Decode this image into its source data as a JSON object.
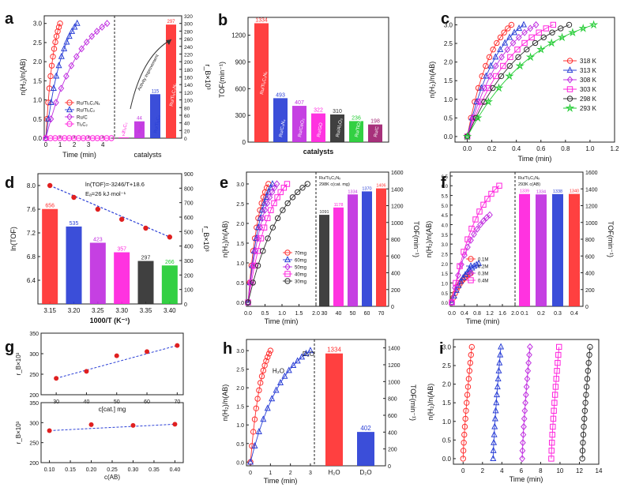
{
  "colors": {
    "red": "#ff3030",
    "blue": "#2a3fd6",
    "violet": "#c030e0",
    "magenta": "#ff22dd",
    "black": "#303030",
    "green": "#22cc33",
    "gray": "#555555"
  },
  "chart_data": [
    {
      "id": "a",
      "type": "line+bar",
      "panel_label": "a",
      "xlabel": "Time (min)",
      "ylabel": "n(H₂)/n(AB)",
      "y2label": "r_B×10³",
      "xlim": [
        0,
        4.6
      ],
      "ylim": [
        0,
        3.2
      ],
      "y2lim": [
        0,
        320
      ],
      "xticks": [
        "0",
        "1",
        "2",
        "3",
        "4"
      ],
      "yticks": [
        "0.0",
        "0.5",
        "1.0",
        "1.5",
        "2.0",
        "2.5",
        "3.0"
      ],
      "y2ticks": [
        "0",
        "20",
        "40",
        "60",
        "80",
        "100",
        "120",
        "140",
        "160",
        "180",
        "200",
        "220",
        "240",
        "260",
        "280",
        "300",
        "320"
      ],
      "legend": [
        "Ru/Ti₃C₂Nₓ",
        "Ru/Ti₃C₂",
        "Ru/C",
        "Ti₃C₂"
      ],
      "series": [
        {
          "name": "Ru/Ti₃C₂Nₓ",
          "color": "#ff3030",
          "marker": "circle",
          "tend": 1.0
        },
        {
          "name": "Ru/Ti₃C₂",
          "color": "#2a3fd6",
          "marker": "triangle",
          "tend": 2.2
        },
        {
          "name": "Ru/C",
          "color": "#c030e0",
          "marker": "diamond",
          "tend": 4.3
        },
        {
          "name": "Ti₃C₂",
          "color": "#ff22dd",
          "marker": "circle",
          "tend": 4.6,
          "flat": true
        }
      ],
      "bar_xlabel": "catalysts",
      "bar_annotation": "Activity improvement",
      "bars": [
        {
          "label": "Ti₃C₂",
          "value": 2,
          "color": "#ff22dd",
          "tag": "2"
        },
        {
          "label": "Ru/C",
          "value": 44,
          "color": "#c030e0",
          "tag": "44"
        },
        {
          "label": "Ru/Ti₃C₂",
          "value": 115,
          "color": "#2a3fd6",
          "tag": "115"
        },
        {
          "label": "Ru/Ti₃C₂Nₓ",
          "value": 297,
          "color": "#ff3030",
          "tag": "297"
        }
      ]
    },
    {
      "id": "b",
      "type": "bar",
      "panel_label": "b",
      "xlabel": "catalysts",
      "ylabel": "TOF(min⁻¹)",
      "ylim": [
        0,
        1400
      ],
      "yticks": [
        "0",
        "300",
        "600",
        "900",
        "1200"
      ],
      "bars": [
        {
          "label": "Ru/Ti₃C₂Nₓ",
          "value": 1334,
          "color": "#ff3030",
          "tag": "1334"
        },
        {
          "label": "Ru/C₃N₄",
          "value": 493,
          "color": "#2a3fd6",
          "tag": "493"
        },
        {
          "label": "Ru/CeO₂",
          "value": 407,
          "color": "#c030e0",
          "tag": "407"
        },
        {
          "label": "Ru/GO",
          "value": 322,
          "color": "#ff22dd",
          "tag": "322"
        },
        {
          "label": "Ru/Al₂O₃",
          "value": 310,
          "color": "#303030",
          "tag": "310"
        },
        {
          "label": "Ru/TiO₂",
          "value": 236,
          "color": "#22cc33",
          "tag": "236"
        },
        {
          "label": "Ru/C",
          "value": 198,
          "color": "#a02070",
          "tag": "198"
        }
      ]
    },
    {
      "id": "c",
      "type": "line",
      "panel_label": "c",
      "xlabel": "Time (min)",
      "ylabel": "n(H₂)/n(AB)",
      "xlim": [
        -0.1,
        1.2
      ],
      "ylim": [
        -0.15,
        3.2
      ],
      "xticks": [
        "0.0",
        "0.2",
        "0.4",
        "0.6",
        "0.8",
        "1.0",
        "1.2"
      ],
      "yticks": [
        "0.0",
        "0.5",
        "1.0",
        "1.5",
        "2.0",
        "2.5",
        "3.0"
      ],
      "series": [
        {
          "name": "318 K",
          "color": "#ff3030",
          "marker": "circle",
          "tend": 0.36
        },
        {
          "name": "313 K",
          "color": "#2a3fd6",
          "marker": "triangle",
          "tend": 0.46
        },
        {
          "name": "308 K",
          "color": "#c030e0",
          "marker": "diamond",
          "tend": 0.56
        },
        {
          "name": "303 K",
          "color": "#ff22dd",
          "marker": "square",
          "tend": 0.7
        },
        {
          "name": "298 K",
          "color": "#303030",
          "marker": "circle",
          "tend": 0.83
        },
        {
          "name": "293 K",
          "color": "#22cc33",
          "marker": "star",
          "tend": 1.03
        }
      ]
    },
    {
      "id": "d",
      "type": "scatter+bar",
      "panel_label": "d",
      "xlabel": "1000/T (K⁻¹)",
      "ylabel": "ln(TOF)",
      "y2label": "r_B×10³",
      "ylim": [
        6.0,
        8.2
      ],
      "y2lim": [
        0,
        900
      ],
      "xticks": [
        "3.15",
        "3.20",
        "3.25",
        "3.30",
        "3.35",
        "3.40"
      ],
      "yticks": [
        "6.4",
        "6.8",
        "7.2",
        "7.6",
        "8.0"
      ],
      "y2ticks": [
        "0",
        "100",
        "200",
        "300",
        "400",
        "500",
        "600",
        "700",
        "800",
        "900"
      ],
      "annotation1": "ln(TOF)=-3246/T+18.6",
      "annotation2": "Eₐ=26 kJ·mol⁻¹",
      "bars": [
        {
          "value": 656,
          "color": "#ff3030",
          "tag": "656"
        },
        {
          "value": 535,
          "color": "#2a3fd6",
          "tag": "535"
        },
        {
          "value": 423,
          "color": "#c030e0",
          "tag": "423"
        },
        {
          "value": 357,
          "color": "#ff22dd",
          "tag": "357"
        },
        {
          "value": 297,
          "color": "#303030",
          "tag": "297"
        },
        {
          "value": 266,
          "color": "#22cc33",
          "tag": "266"
        }
      ],
      "points": [
        8.0,
        7.8,
        7.6,
        7.43,
        7.28,
        7.13
      ]
    },
    {
      "id": "e",
      "type": "line+bar",
      "panel_label": "e",
      "xlabel": "Time (min)",
      "ylabel": "n(H₂)/n(AB)",
      "y2label": "TOF(min⁻¹)",
      "xlim": [
        0,
        2.0
      ],
      "ylim": [
        -0.1,
        3.3
      ],
      "y2lim": [
        0,
        1600
      ],
      "xticks": [
        "0.0",
        "0.5",
        "1.0",
        "1.5",
        "2.0"
      ],
      "yticks": [
        "0.0",
        "0.5",
        "1.0",
        "1.5",
        "2.0",
        "2.5",
        "3.0"
      ],
      "y2ticks": [
        "0",
        "200",
        "400",
        "600",
        "800",
        "1000",
        "1200",
        "1400",
        "1600"
      ],
      "legend": [
        "70mg",
        "60mg",
        "50mg",
        "40mg",
        "30mg"
      ],
      "bar_header1": "Ru/Ti₃C₂Nₓ",
      "bar_header2": "298K  c(cat. mg)",
      "series": [
        {
          "name": "70mg",
          "color": "#ff3030",
          "marker": "circle",
          "tend": 0.6
        },
        {
          "name": "60mg",
          "color": "#2a3fd6",
          "marker": "triangle",
          "tend": 0.72
        },
        {
          "name": "50mg",
          "color": "#c030e0",
          "marker": "diamond",
          "tend": 0.85
        },
        {
          "name": "40mg",
          "color": "#ff22dd",
          "marker": "square",
          "tend": 1.15
        },
        {
          "name": "30mg",
          "color": "#303030",
          "marker": "circle",
          "tend": 1.75
        }
      ],
      "bars": [
        {
          "label": "30",
          "value": 1091,
          "color": "#303030",
          "tag": "1091"
        },
        {
          "label": "40",
          "value": 1178,
          "color": "#ff22dd",
          "tag": "1178"
        },
        {
          "label": "50",
          "value": 1334,
          "color": "#c030e0",
          "tag": "1334"
        },
        {
          "label": "60",
          "value": 1370,
          "color": "#2a3fd6",
          "tag": "1370"
        },
        {
          "label": "70",
          "value": 1406,
          "color": "#ff3030",
          "tag": "1406"
        }
      ]
    },
    {
      "id": "f",
      "type": "line+bar",
      "panel_label": "f",
      "xlabel": "Time (min)",
      "ylabel": "n(H₂)/n(AB)",
      "y2label": "TOF(min⁻¹)",
      "xlim": [
        0,
        2.0
      ],
      "ylim": [
        -0.2,
        6.7
      ],
      "y2lim": [
        0,
        1600
      ],
      "xticks": [
        "0.0",
        "0.4",
        "0.8",
        "1.2",
        "1.6",
        "2.0"
      ],
      "yticks": [
        "0.0",
        "0.5",
        "1.0",
        "1.5",
        "2.0",
        "2.5",
        "3.0",
        "3.5",
        "4.0",
        "4.5",
        "5.0",
        "5.5",
        "6.0",
        "6.5"
      ],
      "y2ticks": [
        "0",
        "200",
        "400",
        "600",
        "800",
        "1000",
        "1200",
        "1400",
        "1600"
      ],
      "legend": [
        "0.1M",
        "0.2M",
        "0.3M",
        "0.4M"
      ],
      "bar_header1": "Ru/Ti₃C₂Nₓ",
      "bar_header2": "293K  c(AB)",
      "series": [
        {
          "name": "0.1M",
          "color": "#ff3030",
          "marker": "circle",
          "tend": 0.6,
          "ymax": 1.5
        },
        {
          "name": "0.2M",
          "color": "#2a3fd6",
          "marker": "triangle",
          "tend": 0.85,
          "ymax": 2.0
        },
        {
          "name": "0.3M",
          "color": "#c030e0",
          "marker": "diamond",
          "tend": 1.2,
          "ymax": 4.5
        },
        {
          "name": "0.4M",
          "color": "#ff22dd",
          "marker": "square",
          "tend": 1.5,
          "ymax": 6.0
        }
      ],
      "bars": [
        {
          "label": "0.1",
          "value": 1339,
          "color": "#ff22dd",
          "tag": "1339"
        },
        {
          "label": "0.2",
          "value": 1334,
          "color": "#c030e0",
          "tag": "1334"
        },
        {
          "label": "0.3",
          "value": 1338,
          "color": "#2a3fd6",
          "tag": "1338"
        },
        {
          "label": "0.4",
          "value": 1340,
          "color": "#ff3030",
          "tag": "1340"
        }
      ]
    },
    {
      "id": "g",
      "type": "scatter",
      "panel_label": "g",
      "top": {
        "ylabel": "r_B×10³",
        "xlabel": "c[cat.] mg",
        "xlim": [
          25,
          72
        ],
        "ylim": [
          200,
          350
        ],
        "xticks": [
          "30",
          "40",
          "50",
          "60",
          "70"
        ],
        "yticks": [
          "200",
          "250",
          "300",
          "350"
        ],
        "x": [
          30,
          40,
          50,
          60,
          70
        ],
        "y": [
          240,
          257,
          295,
          305,
          320
        ]
      },
      "bottom": {
        "ylabel": "r_B×10³",
        "xlabel": "c(AB)",
        "xlim": [
          0.08,
          0.42
        ],
        "ylim": [
          200,
          350
        ],
        "xticks": [
          "0.10",
          "0.15",
          "0.20",
          "0.25",
          "0.30",
          "0.35",
          "0.40"
        ],
        "yticks": [
          "200",
          "250",
          "300",
          "350"
        ],
        "x": [
          0.1,
          0.2,
          0.3,
          0.4
        ],
        "y": [
          280,
          295,
          293,
          296
        ]
      }
    },
    {
      "id": "h",
      "type": "line+bar",
      "panel_label": "h",
      "xlabel": "Time (min)",
      "ylabel": "n(H₂)/n(AB)",
      "y2label": "TOF(min⁻¹)",
      "xlim": [
        -0.2,
        3.2
      ],
      "ylim": [
        -0.1,
        3.3
      ],
      "y2lim": [
        0,
        1500
      ],
      "xticks": [
        "0",
        "1",
        "2",
        "3"
      ],
      "yticks": [
        "0.0",
        "0.5",
        "1.0",
        "1.5",
        "2.0",
        "2.5",
        "3.0"
      ],
      "y2ticks": [
        "0",
        "200",
        "400",
        "600",
        "800",
        "1000",
        "1200",
        "1400"
      ],
      "labels": [
        "H₂O",
        "D₂O"
      ],
      "series": [
        {
          "name": "H₂O",
          "color": "#ff3030",
          "marker": "circle",
          "tend": 1.0
        },
        {
          "name": "D₂O",
          "color": "#2a3fd6",
          "marker": "triangle",
          "tend": 3.0
        }
      ],
      "bars": [
        {
          "label": "H₂O",
          "value": 1334,
          "color": "#ff3030",
          "tag": "1334"
        },
        {
          "label": "D₂O",
          "value": 402,
          "color": "#2a3fd6",
          "tag": "402"
        }
      ]
    },
    {
      "id": "i",
      "type": "line",
      "panel_label": "i",
      "xlabel": "Time (min)",
      "ylabel": "n(H₂)/n(AB)",
      "xlim": [
        -1,
        14
      ],
      "ylim": [
        -0.15,
        3.2
      ],
      "xticks": [
        "0",
        "2",
        "4",
        "6",
        "8",
        "10",
        "12",
        "14"
      ],
      "yticks": [
        "0.0",
        "0.5",
        "1.0",
        "1.5",
        "2.0",
        "2.5",
        "3.0"
      ],
      "series": [
        {
          "color": "#ff3030",
          "marker": "circle",
          "t0": 0,
          "t1": 0.9
        },
        {
          "color": "#2a3fd6",
          "marker": "triangle",
          "t0": 3.1,
          "t1": 3.9
        },
        {
          "color": "#c030e0",
          "marker": "diamond",
          "t0": 6.1,
          "t1": 6.9
        },
        {
          "color": "#ff22dd",
          "marker": "square",
          "t0": 9.1,
          "t1": 9.9
        },
        {
          "color": "#303030",
          "marker": "circle",
          "t0": 12.3,
          "t1": 13.1
        }
      ]
    }
  ]
}
